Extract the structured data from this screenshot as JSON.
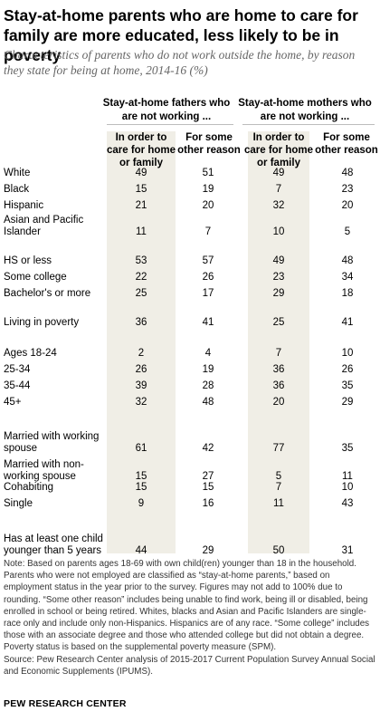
{
  "title": "Stay-at-home parents who are home to care for family are more educated, less likely to be in poverty",
  "subtitle": "Characteristics of parents who do not work outside the home, by reason they state for being at home, 2014-16 (%)",
  "chart_data": {
    "type": "table",
    "group_headers": [
      "Stay-at-home fathers who are not working ...",
      "Stay-at-home mothers who are not working ..."
    ],
    "column_headers": [
      "In order to care for home or family",
      "For some other reason",
      "In order to care for home or family",
      "For some other reason"
    ],
    "rows": [
      {
        "label": "White",
        "values": [
          "49",
          "51",
          "49",
          "48"
        ]
      },
      {
        "label": "Black",
        "values": [
          "15",
          "19",
          "7",
          "23"
        ]
      },
      {
        "label": "Hispanic",
        "values": [
          "21",
          "20",
          "32",
          "20"
        ]
      },
      {
        "label": "Asian and Pacific Islander",
        "values": [
          "11",
          "7",
          "10",
          "5"
        ]
      },
      {
        "label": "HS or less",
        "values": [
          "53",
          "57",
          "49",
          "48"
        ]
      },
      {
        "label": "Some college",
        "values": [
          "22",
          "26",
          "23",
          "34"
        ]
      },
      {
        "label": "Bachelor's or more",
        "values": [
          "25",
          "17",
          "29",
          "18"
        ]
      },
      {
        "label": "Living in poverty",
        "values": [
          "36",
          "41",
          "25",
          "41"
        ]
      },
      {
        "label": "Ages 18-24",
        "values": [
          "2",
          "4",
          "7",
          "10"
        ]
      },
      {
        "label": "25-34",
        "values": [
          "26",
          "19",
          "36",
          "26"
        ]
      },
      {
        "label": "35-44",
        "values": [
          "39",
          "28",
          "36",
          "35"
        ]
      },
      {
        "label": "45+",
        "values": [
          "32",
          "48",
          "20",
          "29"
        ]
      },
      {
        "label": "Married with working spouse",
        "values": [
          "61",
          "42",
          "77",
          "35"
        ]
      },
      {
        "label": "Married with non-working spouse",
        "values": [
          "15",
          "27",
          "5",
          "11"
        ]
      },
      {
        "label": "Cohabiting",
        "values": [
          "15",
          "15",
          "7",
          "10"
        ]
      },
      {
        "label": "Single",
        "values": [
          "9",
          "16",
          "11",
          "43"
        ]
      },
      {
        "label": "Has at least one child younger than 5 years",
        "values": [
          "44",
          "29",
          "50",
          "31"
        ]
      }
    ]
  },
  "notes": "Note: Based on parents ages 18-69 with own child(ren) younger than 18 in the household. Parents who were not employed are classified as “stay-at-home parents,” based on employment status in the year prior to the survey. Figures may not add to 100% due to rounding. “Some other reason” includes being unable to find work, being ill or disabled, being enrolled in school or being retired. Whites, blacks and Asian and Pacific Islanders are single-race only and include only non-Hispanics. Hispanics are of any race. “Some college” includes those with an associate degree and those who attended college but did not obtain a degree. Poverty status is based on the supplemental poverty measure (SPM).",
  "source": "Source: Pew Research Center analysis of 2015-2017 Current Population Survey Annual Social and Economic Supplements (IPUMS).",
  "brand": "PEW RESEARCH CENTER"
}
